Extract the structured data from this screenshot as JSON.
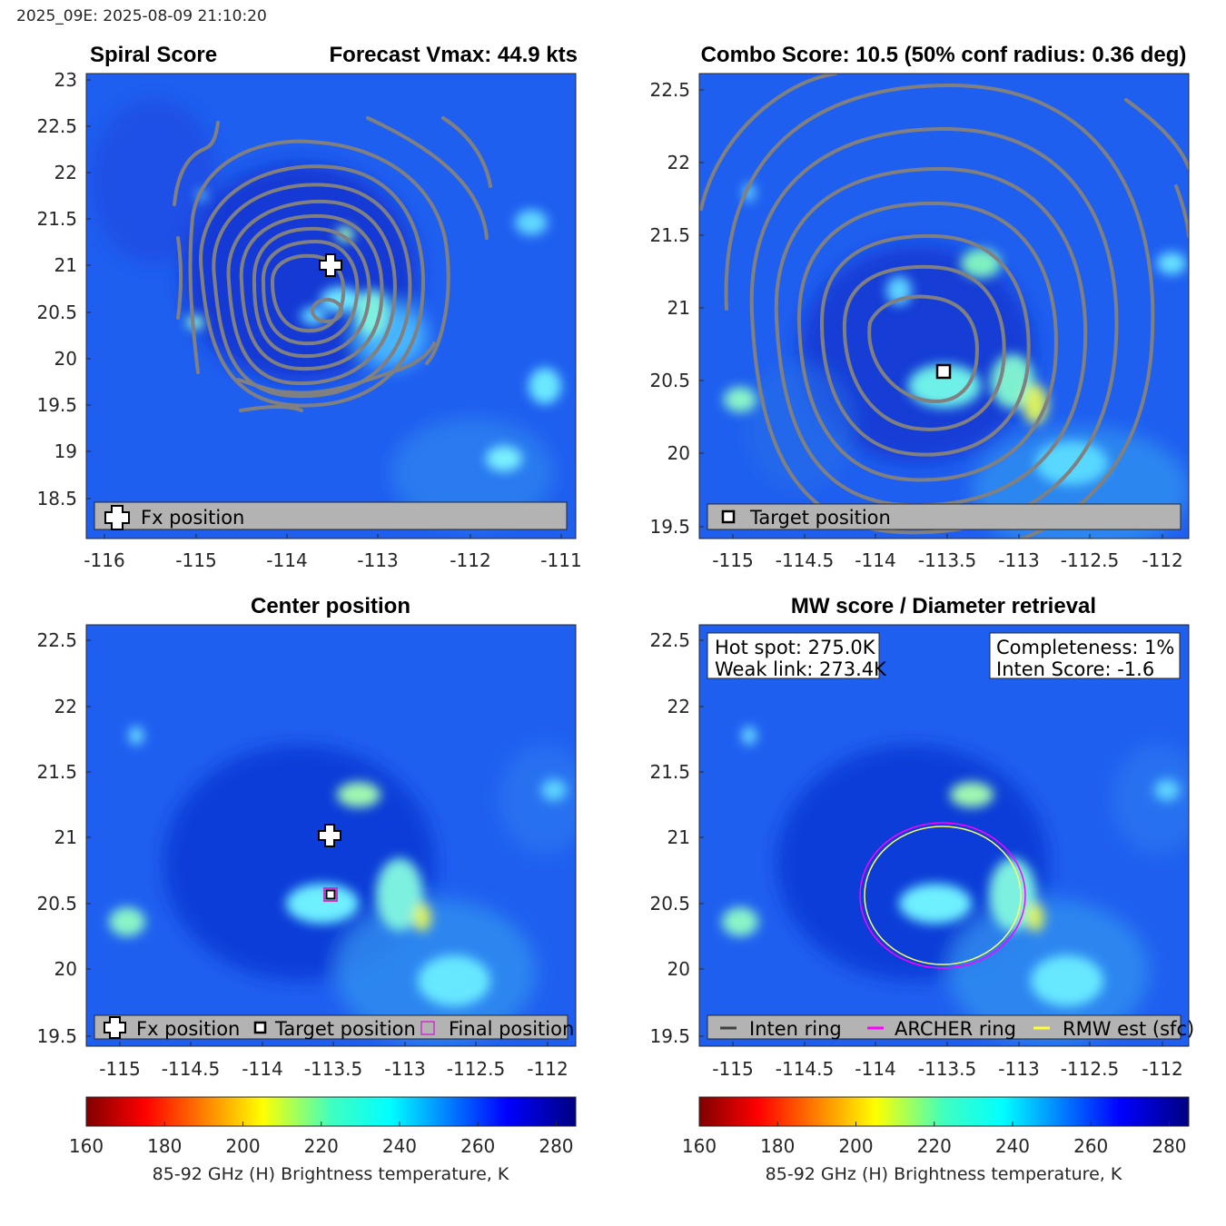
{
  "header": {
    "stamp": "2025_09E: 2025-08-09 21:10:20"
  },
  "panels": [
    {
      "id": "spiral",
      "title_left": "Spiral Score",
      "title_right": "Forecast Vmax: 44.9 kts",
      "xticks": [
        "-116",
        "-115",
        "-114",
        "-113",
        "-112",
        "-111"
      ],
      "yticks": [
        "23",
        "22.5",
        "22",
        "21.5",
        "21",
        "20.5",
        "20",
        "19.5",
        "19",
        "18.5"
      ],
      "legend": [
        {
          "marker": "fx-cross",
          "label": "Fx position"
        }
      ]
    },
    {
      "id": "combo",
      "title_center": "Combo Score: 10.5  (50% conf radius: 0.36 deg)",
      "xticks": [
        "-115",
        "-114.5",
        "-114",
        "-113.5",
        "-113",
        "-112.5",
        "-112"
      ],
      "yticks": [
        "22.5",
        "22",
        "21.5",
        "21",
        "20.5",
        "20",
        "19.5"
      ],
      "legend": [
        {
          "marker": "target-square",
          "label": "Target position"
        }
      ]
    },
    {
      "id": "center",
      "title_center": "Center position",
      "xticks": [
        "-115",
        "-114.5",
        "-114",
        "-113.5",
        "-113",
        "-112.5",
        "-112"
      ],
      "yticks": [
        "22.5",
        "22",
        "21.5",
        "21",
        "20.5",
        "20",
        "19.5"
      ],
      "legend": [
        {
          "marker": "fx-cross",
          "label": "Fx position"
        },
        {
          "marker": "target-square",
          "label": "Target position"
        },
        {
          "marker": "final-square",
          "label": "Final position"
        }
      ]
    },
    {
      "id": "mw",
      "title_center": "MW score / Diameter retrieval",
      "xticks": [
        "-115",
        "-114.5",
        "-114",
        "-113.5",
        "-113",
        "-112.5",
        "-112"
      ],
      "yticks": [
        "22.5",
        "22",
        "21.5",
        "21",
        "20.5",
        "20",
        "19.5"
      ],
      "info_left": [
        "Hot spot: 275.0K",
        "Weak link: 273.4K"
      ],
      "info_right": [
        "Completeness: 1%",
        "Inten Score: -1.6"
      ],
      "legend": [
        {
          "marker": "line-dark",
          "label": "Inten ring"
        },
        {
          "marker": "line-magenta",
          "label": "ARCHER ring"
        },
        {
          "marker": "line-yellow",
          "label": "RMW est (sfc)"
        }
      ]
    }
  ],
  "colorbars": [
    {
      "ticks": [
        "160",
        "180",
        "200",
        "220",
        "240",
        "260",
        "280"
      ],
      "label": "85-92 GHz (H) Brightness temperature, K"
    },
    {
      "ticks": [
        "160",
        "180",
        "200",
        "220",
        "240",
        "260",
        "280"
      ],
      "label": "85-92 GHz (H) Brightness temperature, K"
    }
  ],
  "colors": {
    "contour": "#808080",
    "archer_ring": "#ff00ff",
    "rmw_ring": "#ffff66",
    "frame": "#262626"
  },
  "chart_data": [
    {
      "type": "heatmap",
      "title": "Spiral Score",
      "subtitle": "Forecast Vmax: 44.9 kts",
      "xlim": [
        -116.2,
        -110.9
      ],
      "ylim": [
        18.05,
        23.05
      ],
      "colormap": "jet-reversed",
      "clim": [
        160,
        285
      ],
      "contours": "spiral score contours (gray)",
      "grid": false,
      "legend_position": "bottom",
      "markers": [
        {
          "name": "Fx position",
          "lon": -113.5,
          "lat": 21.0
        }
      ]
    },
    {
      "type": "heatmap",
      "title": "Combo Score: 10.5  (50% conf radius: 0.36 deg)",
      "xlim": [
        -115.25,
        -111.85
      ],
      "ylim": [
        19.45,
        22.6
      ],
      "colormap": "jet-reversed",
      "clim": [
        160,
        285
      ],
      "contours": "combo score contours (gray)",
      "grid": false,
      "legend_position": "bottom",
      "markers": [
        {
          "name": "Target position",
          "lon": -113.5,
          "lat": 20.56
        }
      ]
    },
    {
      "type": "heatmap",
      "title": "Center position",
      "xlim": [
        -115.25,
        -111.85
      ],
      "ylim": [
        19.45,
        22.6
      ],
      "colormap": "jet-reversed",
      "clim": [
        160,
        285
      ],
      "grid": false,
      "legend_position": "bottom",
      "markers": [
        {
          "name": "Fx position",
          "lon": -113.5,
          "lat": 21.0
        },
        {
          "name": "Target position",
          "lon": -113.5,
          "lat": 20.56
        },
        {
          "name": "Final position",
          "lon": -113.5,
          "lat": 20.56
        }
      ]
    },
    {
      "type": "heatmap",
      "title": "MW score / Diameter retrieval",
      "xlim": [
        -115.25,
        -111.85
      ],
      "ylim": [
        19.45,
        22.6
      ],
      "colormap": "jet-reversed",
      "clim": [
        160,
        285
      ],
      "grid": false,
      "legend_position": "bottom",
      "rings": [
        {
          "name": "ARCHER ring",
          "center": [
            -113.5,
            20.56
          ],
          "radius_lon": 0.57,
          "radius_lat": 0.55
        },
        {
          "name": "RMW est (sfc)",
          "center": [
            -113.5,
            20.56
          ],
          "radius_lon": 0.54,
          "radius_lat": 0.52
        }
      ]
    }
  ]
}
